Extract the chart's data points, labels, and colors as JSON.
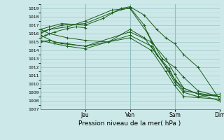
{
  "xlabel": "Pression niveau de la mer( hPa )",
  "bg_color": "#cce8e8",
  "line_color": "#1a5c1a",
  "grid_color_minor": "#b8d8d8",
  "grid_color_major": "#90c0c0",
  "ylim": [
    1007,
    1019.5
  ],
  "yticks": [
    1007,
    1008,
    1009,
    1010,
    1011,
    1012,
    1013,
    1014,
    1015,
    1016,
    1017,
    1018,
    1019
  ],
  "day_labels": [
    "Jeu",
    "Ven",
    "Sam",
    "Dim"
  ],
  "day_positions": [
    0.25,
    0.5,
    0.75,
    1.0
  ],
  "vline_positions": [
    0.25,
    0.5,
    0.75
  ],
  "lines": [
    {
      "x": [
        0.0,
        0.03,
        0.08,
        0.15,
        0.2,
        0.25
      ],
      "y": [
        1015.5,
        1015.8,
        1016.2,
        1016.6,
        1016.8,
        1016.7
      ]
    },
    {
      "x": [
        0.0,
        0.05,
        0.12,
        0.25,
        0.35,
        0.45,
        0.5,
        0.58,
        0.65,
        0.7,
        0.75,
        0.8,
        0.88,
        1.0
      ],
      "y": [
        1016.5,
        1016.8,
        1017.2,
        1017.0,
        1017.8,
        1019.0,
        1019.2,
        1018.2,
        1016.5,
        1015.5,
        1014.8,
        1013.5,
        1012.0,
        1008.2
      ]
    },
    {
      "x": [
        0.0,
        0.05,
        0.12,
        0.25,
        0.4,
        0.5,
        0.58,
        0.65,
        0.72,
        0.75,
        0.8,
        0.88,
        1.0
      ],
      "y": [
        1016.0,
        1016.5,
        1017.0,
        1017.2,
        1018.5,
        1019.1,
        1017.0,
        1013.5,
        1011.5,
        1010.5,
        1009.5,
        1008.8,
        1008.0
      ]
    },
    {
      "x": [
        0.0,
        0.05,
        0.15,
        0.25,
        0.4,
        0.5,
        0.6,
        0.68,
        0.75,
        0.8,
        0.88,
        1.0
      ],
      "y": [
        1016.2,
        1016.5,
        1016.8,
        1017.5,
        1018.8,
        1019.0,
        1016.0,
        1013.0,
        1012.0,
        1010.8,
        1009.2,
        1008.5
      ]
    },
    {
      "x": [
        0.0,
        0.05,
        0.12,
        0.25,
        0.5,
        0.62,
        0.7,
        0.75,
        0.8,
        0.88,
        1.0
      ],
      "y": [
        1015.0,
        1015.2,
        1014.8,
        1014.5,
        1016.2,
        1015.0,
        1013.0,
        1011.2,
        1009.5,
        1008.8,
        1008.5
      ]
    },
    {
      "x": [
        0.0,
        0.08,
        0.15,
        0.25,
        0.5,
        0.62,
        0.7,
        0.75,
        0.8,
        0.88,
        1.0
      ],
      "y": [
        1015.2,
        1014.8,
        1014.5,
        1014.2,
        1015.8,
        1014.5,
        1012.0,
        1010.2,
        1009.0,
        1008.5,
        1008.8
      ]
    },
    {
      "x": [
        0.0,
        0.08,
        0.15,
        0.25,
        0.5,
        0.62,
        0.7,
        0.75,
        0.8,
        1.0
      ],
      "y": [
        1015.8,
        1015.0,
        1014.8,
        1014.5,
        1015.5,
        1014.0,
        1011.5,
        1009.8,
        1008.5,
        1008.2
      ]
    },
    {
      "x": [
        0.0,
        0.05,
        0.15,
        0.25,
        0.38,
        0.5,
        0.58,
        0.65,
        0.72,
        0.75,
        0.8,
        1.0
      ],
      "y": [
        1016.5,
        1016.0,
        1015.5,
        1015.2,
        1015.0,
        1016.5,
        1015.5,
        1013.5,
        1011.8,
        1010.5,
        1009.2,
        1008.5
      ]
    }
  ]
}
